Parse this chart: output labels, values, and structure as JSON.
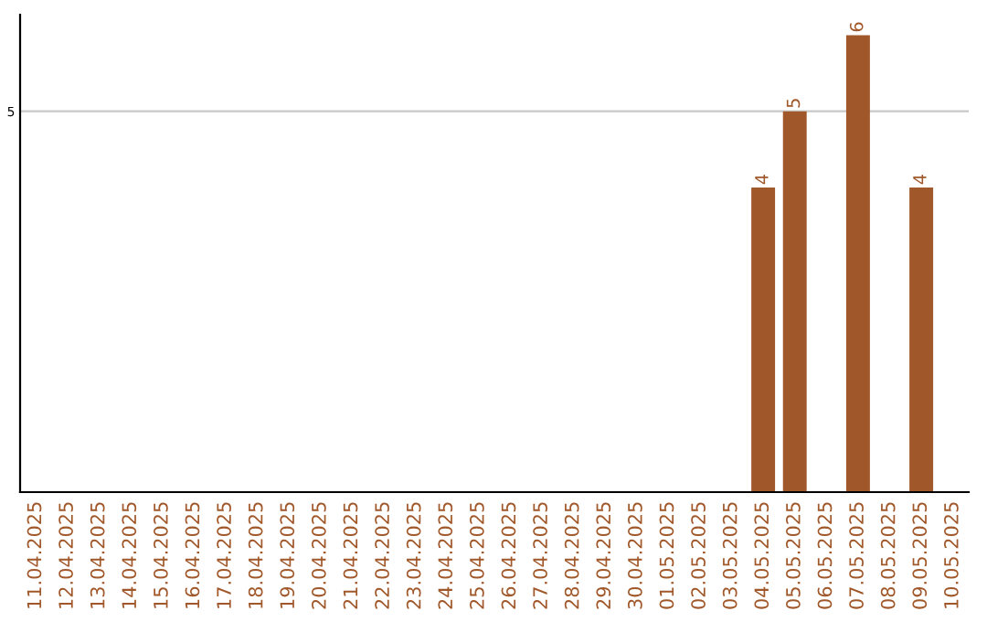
{
  "chart_data": {
    "type": "bar",
    "categories": [
      "11.04.2025",
      "12.04.2025",
      "13.04.2025",
      "14.04.2025",
      "15.04.2025",
      "16.04.2025",
      "17.04.2025",
      "18.04.2025",
      "19.04.2025",
      "20.04.2025",
      "21.04.2025",
      "22.04.2025",
      "23.04.2025",
      "24.04.2025",
      "25.04.2025",
      "26.04.2025",
      "27.04.2025",
      "28.04.2025",
      "29.04.2025",
      "30.04.2025",
      "01.05.2025",
      "02.05.2025",
      "03.05.2025",
      "04.05.2025",
      "05.05.2025",
      "06.05.2025",
      "07.05.2025",
      "08.05.2025",
      "09.05.2025",
      "10.05.2025"
    ],
    "values": [
      null,
      null,
      null,
      null,
      null,
      null,
      null,
      null,
      null,
      null,
      null,
      null,
      null,
      null,
      null,
      null,
      null,
      null,
      null,
      null,
      null,
      null,
      null,
      4,
      5,
      null,
      6,
      null,
      4,
      null
    ],
    "color": "#a0582a",
    "ylim": [
      0,
      6.27
    ],
    "yticks": [
      5
    ],
    "grid": "y",
    "data_labels": true
  }
}
